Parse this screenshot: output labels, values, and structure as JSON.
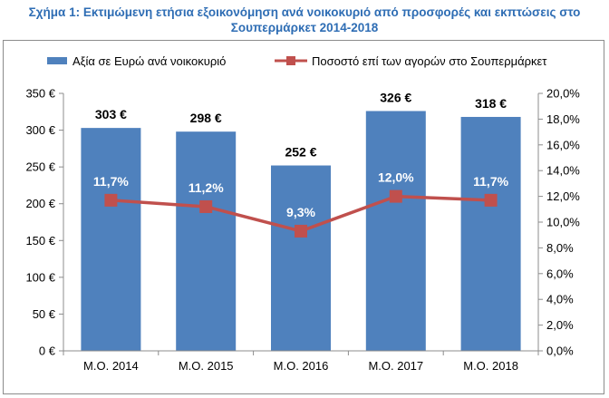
{
  "title_line1": "Σχήμα 1: Εκτιμώμενη ετήσια εξοικονόμηση ανά νοικοκυριό από προσφορές και εκπτώσεις στο",
  "title_line2": "Σουπερμάρκετ 2014-2018",
  "colors": {
    "bar": "#4f81bd",
    "line": "#c0504d",
    "title": "#2e6db4"
  },
  "chart_data": {
    "type": "bar",
    "categories": [
      "Μ.Ο. 2014",
      "Μ.Ο. 2015",
      "Μ.Ο. 2016",
      "Μ.Ο. 2017",
      "Μ.Ο. 2018"
    ],
    "series": [
      {
        "name": "Αξία σε Ευρώ ανά νοικοκυριό",
        "type": "bar",
        "axis": "left",
        "values": [
          303,
          298,
          252,
          326,
          318
        ],
        "labels": [
          "303 €",
          "298 €",
          "252 €",
          "326 €",
          "318 €"
        ]
      },
      {
        "name": "Ποσοστό επί των αγορών στο Σουπερμάρκετ",
        "type": "line",
        "axis": "right",
        "values": [
          11.7,
          11.2,
          9.3,
          12.0,
          11.7
        ],
        "labels": [
          "11,7%",
          "11,2%",
          "9,3%",
          "12,0%",
          "11,7%"
        ]
      }
    ],
    "y_left": {
      "range": [
        0,
        350
      ],
      "ticks": [
        0,
        50,
        100,
        150,
        200,
        250,
        300,
        350
      ],
      "tick_labels": [
        "0 €",
        "50 €",
        "100 €",
        "150 €",
        "200 €",
        "250 €",
        "300 €",
        "350 €"
      ]
    },
    "y_right": {
      "range": [
        0,
        20
      ],
      "ticks": [
        0,
        2,
        4,
        6,
        8,
        10,
        12,
        14,
        16,
        18,
        20
      ],
      "tick_labels": [
        "0,0%",
        "2,0%",
        "4,0%",
        "6,0%",
        "8,0%",
        "10,0%",
        "12,0%",
        "14,0%",
        "16,0%",
        "18,0%",
        "20,0%"
      ]
    },
    "legend_position": "top",
    "grid": false
  }
}
